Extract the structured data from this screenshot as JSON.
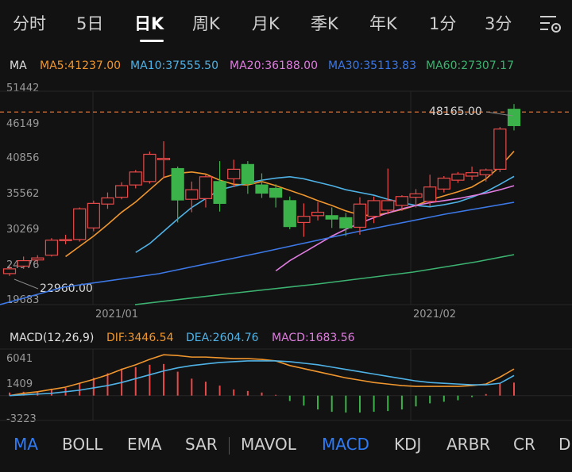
{
  "period_tabs": [
    "分时",
    "5日",
    "日K",
    "周K",
    "月K",
    "季K",
    "年K",
    "1分",
    "3分"
  ],
  "active_period": "日K",
  "ma_header": {
    "label": "MA",
    "items": [
      {
        "text": "MA5:41237.00",
        "color": "#f0962e"
      },
      {
        "text": "MA10:37555.50",
        "color": "#4fb2e6"
      },
      {
        "text": "MA20:36188.00",
        "color": "#e07ce0"
      },
      {
        "text": "MA30:35113.83",
        "color": "#3c78e6"
      },
      {
        "text": "MA60:27307.17",
        "color": "#3cb371"
      }
    ]
  },
  "price_axis": [
    "51442",
    "46149",
    "40856",
    "35562",
    "30269",
    "24976",
    "19683"
  ],
  "x_axis_labels": [
    "2021/01",
    "2021/02"
  ],
  "annotations": {
    "high": "48165.00",
    "low": "22960.00"
  },
  "macd_header": {
    "label": "MACD(12,26,9)",
    "items": [
      {
        "text": "DIF:3446.54",
        "color": "#f0962e"
      },
      {
        "text": "DEA:2604.76",
        "color": "#4fb2e6"
      },
      {
        "text": "MACD:1683.56",
        "color": "#e07ce0"
      }
    ]
  },
  "macd_axis": [
    "6041",
    "1409",
    "-3223"
  ],
  "bottom_tabs": [
    "MA",
    "BOLL",
    "EMA",
    "SAR",
    "MAVOL",
    "MACD",
    "KDJ",
    "ARBR",
    "CR",
    "D"
  ],
  "active_bottom_tabs": [
    "MA",
    "MACD"
  ],
  "colors": {
    "up": "#e84a4a",
    "down": "#3cb34a",
    "current_line": "#f07b3a"
  },
  "chart_data": {
    "type": "candlestick",
    "price_range": [
      19683,
      51442
    ],
    "current_price": 47000,
    "candles": [
      {
        "o": 23300,
        "h": 24400,
        "l": 22960,
        "c": 24000
      },
      {
        "o": 24400,
        "h": 25800,
        "l": 24000,
        "c": 25200
      },
      {
        "o": 25300,
        "h": 26000,
        "l": 24800,
        "c": 25600
      },
      {
        "o": 26000,
        "h": 28500,
        "l": 25800,
        "c": 28200
      },
      {
        "o": 28200,
        "h": 29000,
        "l": 27600,
        "c": 28300
      },
      {
        "o": 28300,
        "h": 33000,
        "l": 28000,
        "c": 32800
      },
      {
        "o": 30000,
        "h": 34000,
        "l": 29500,
        "c": 33600
      },
      {
        "o": 33500,
        "h": 35200,
        "l": 32800,
        "c": 34400
      },
      {
        "o": 34500,
        "h": 36700,
        "l": 34200,
        "c": 36200
      },
      {
        "o": 36300,
        "h": 38500,
        "l": 35800,
        "c": 38200
      },
      {
        "o": 36800,
        "h": 41200,
        "l": 36500,
        "c": 40800
      },
      {
        "o": 40000,
        "h": 42700,
        "l": 37300,
        "c": 40200
      },
      {
        "o": 38700,
        "h": 39000,
        "l": 30800,
        "c": 34100
      },
      {
        "o": 34200,
        "h": 36800,
        "l": 32300,
        "c": 35600
      },
      {
        "o": 34300,
        "h": 37800,
        "l": 33000,
        "c": 37500
      },
      {
        "o": 36800,
        "h": 39800,
        "l": 32400,
        "c": 33600
      },
      {
        "o": 37200,
        "h": 40000,
        "l": 36000,
        "c": 38600
      },
      {
        "o": 39300,
        "h": 39800,
        "l": 35000,
        "c": 36500
      },
      {
        "o": 36300,
        "h": 38000,
        "l": 34400,
        "c": 35100
      },
      {
        "o": 35800,
        "h": 36400,
        "l": 33000,
        "c": 34500
      },
      {
        "o": 34000,
        "h": 34600,
        "l": 29800,
        "c": 30200
      },
      {
        "o": 30800,
        "h": 33600,
        "l": 28700,
        "c": 31700
      },
      {
        "o": 31800,
        "h": 33800,
        "l": 31100,
        "c": 32300
      },
      {
        "o": 31800,
        "h": 33000,
        "l": 30000,
        "c": 31300
      },
      {
        "o": 31500,
        "h": 32200,
        "l": 28800,
        "c": 30000
      },
      {
        "o": 30100,
        "h": 34500,
        "l": 29000,
        "c": 33500
      },
      {
        "o": 31700,
        "h": 34600,
        "l": 30700,
        "c": 34000
      },
      {
        "o": 32600,
        "h": 38700,
        "l": 32000,
        "c": 34000
      },
      {
        "o": 33300,
        "h": 34800,
        "l": 32500,
        "c": 34600
      },
      {
        "o": 34500,
        "h": 35700,
        "l": 33000,
        "c": 35000
      },
      {
        "o": 33900,
        "h": 37800,
        "l": 33200,
        "c": 36000
      },
      {
        "o": 35700,
        "h": 37600,
        "l": 35200,
        "c": 37300
      },
      {
        "o": 37000,
        "h": 38200,
        "l": 36600,
        "c": 37900
      },
      {
        "o": 37600,
        "h": 39000,
        "l": 37000,
        "c": 38100
      },
      {
        "o": 37800,
        "h": 38700,
        "l": 36800,
        "c": 38500
      },
      {
        "o": 38600,
        "h": 44800,
        "l": 38200,
        "c": 44500
      },
      {
        "o": 47400,
        "h": 48165,
        "l": 44300,
        "c": 45000
      }
    ],
    "ma_lines": {
      "MA5": [
        null,
        null,
        null,
        null,
        25800,
        27300,
        28800,
        30500,
        32300,
        33800,
        35600,
        37400,
        38000,
        38200,
        37900,
        37000,
        36400,
        36300,
        36800,
        36200,
        35500,
        34800,
        34000,
        33300,
        32500,
        31900,
        31800,
        32200,
        32700,
        33300,
        34100,
        34700,
        35300,
        36000,
        37200,
        39000,
        41237
      ],
      "MA10": [
        null,
        null,
        null,
        null,
        null,
        null,
        null,
        null,
        null,
        26400,
        27700,
        29500,
        31300,
        33000,
        34300,
        35600,
        36100,
        36600,
        37000,
        37300,
        37500,
        37200,
        36700,
        36200,
        35600,
        35200,
        34800,
        34200,
        33700,
        33300,
        33100,
        33400,
        33800,
        34500,
        35300,
        36400,
        37555
      ],
      "MA20": [
        null,
        null,
        null,
        null,
        null,
        null,
        null,
        null,
        null,
        null,
        null,
        null,
        null,
        null,
        null,
        null,
        null,
        null,
        null,
        23700,
        25200,
        26400,
        27600,
        28800,
        29800,
        30700,
        31500,
        32200,
        32800,
        33300,
        33700,
        34000,
        34300,
        34700,
        35100,
        35600,
        36188
      ],
      "MA30": [
        null,
        null,
        null,
        null,
        null,
        null,
        null,
        null,
        null,
        null,
        null,
        null,
        null,
        null,
        null,
        null,
        null,
        null,
        null,
        null,
        null,
        null,
        null,
        null,
        null,
        null,
        null,
        null,
        null,
        null,
        null,
        null,
        null,
        null,
        null,
        null,
        35114
      ],
      "MA60": [
        null,
        null,
        null,
        null,
        null,
        null,
        null,
        null,
        null,
        null,
        null,
        null,
        null,
        null,
        null,
        null,
        null,
        null,
        null,
        null,
        null,
        null,
        null,
        null,
        null,
        null,
        null,
        null,
        null,
        null,
        null,
        null,
        null,
        null,
        null,
        null,
        27307
      ]
    },
    "macd": {
      "range": [
        -3223,
        6041
      ],
      "dif": [
        0,
        300,
        500,
        800,
        1100,
        1600,
        2100,
        2700,
        3400,
        4000,
        4700,
        5300,
        5200,
        5000,
        5000,
        4900,
        4800,
        4800,
        4700,
        4500,
        3900,
        3500,
        3100,
        2700,
        2300,
        2000,
        1700,
        1500,
        1300,
        1200,
        1200,
        1200,
        1200,
        1300,
        1500,
        2400,
        3447
      ],
      "dea": [
        0,
        100,
        200,
        300,
        500,
        700,
        1000,
        1300,
        1700,
        2200,
        2700,
        3200,
        3600,
        3900,
        4100,
        4300,
        4400,
        4500,
        4500,
        4500,
        4400,
        4200,
        4000,
        3700,
        3400,
        3100,
        2800,
        2500,
        2200,
        1900,
        1700,
        1600,
        1500,
        1400,
        1400,
        1600,
        2605
      ],
      "hist": [
        400,
        500,
        500,
        900,
        1000,
        1600,
        2300,
        2900,
        3500,
        3700,
        4000,
        4100,
        3100,
        2200,
        1800,
        1300,
        800,
        600,
        400,
        100,
        -700,
        -1300,
        -1800,
        -2100,
        -2200,
        -2200,
        -2100,
        -2000,
        -1800,
        -1400,
        -1000,
        -800,
        -600,
        -200,
        200,
        1600,
        1684
      ]
    }
  }
}
